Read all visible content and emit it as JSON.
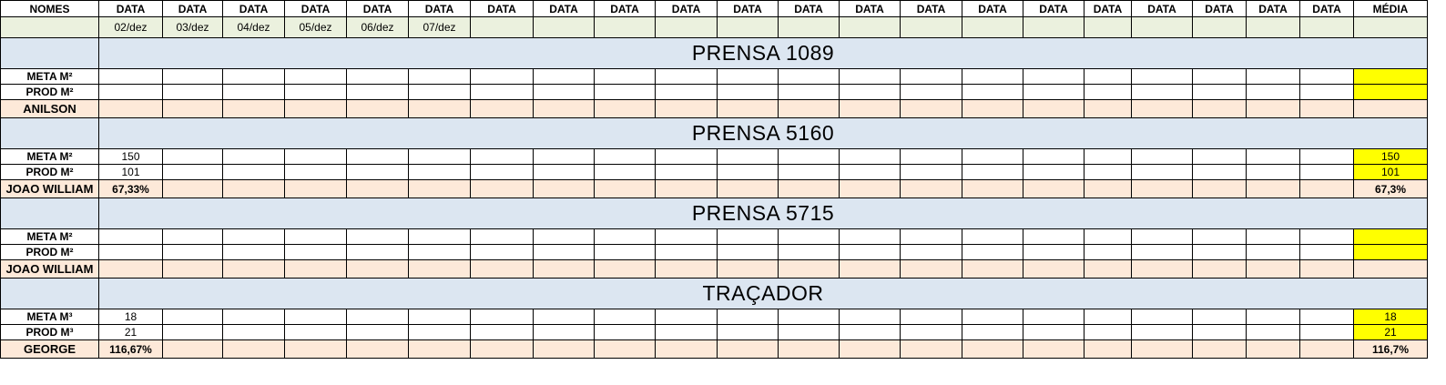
{
  "header": {
    "names_label": "NOMES",
    "date_label": "DATA",
    "average_label": "MÉDIA"
  },
  "dates": [
    "02/dez",
    "03/dez",
    "04/dez",
    "05/dez",
    "06/dez",
    "07/dez",
    "",
    "",
    "",
    "",
    "",
    "",
    "",
    "",
    "",
    "",
    "",
    "",
    "",
    "",
    ""
  ],
  "sections": [
    {
      "title": "PRENSA 1089",
      "meta_label": "META M²",
      "prod_label": "PROD M²",
      "operator": "ANILSON",
      "meta_day1": "",
      "prod_day1": "",
      "pct_day1": "",
      "meta_avg": "",
      "prod_avg": "",
      "pct_avg": ""
    },
    {
      "title": "PRENSA 5160",
      "meta_label": "META M²",
      "prod_label": "PROD M²",
      "operator": "JOAO WILLIAM",
      "meta_day1": "150",
      "prod_day1": "101",
      "pct_day1": "67,33%",
      "meta_avg": "150",
      "prod_avg": "101",
      "pct_avg": "67,3%"
    },
    {
      "title": "PRENSA 5715",
      "meta_label": "META M²",
      "prod_label": "PROD M²",
      "operator": "JOAO WILLIAM",
      "meta_day1": "",
      "prod_day1": "",
      "pct_day1": "",
      "meta_avg": "",
      "prod_avg": "",
      "pct_avg": ""
    },
    {
      "title": "TRAÇADOR",
      "meta_label": "META M³",
      "prod_label": "PROD M³",
      "operator": "GEORGE",
      "meta_day1": "18",
      "prod_day1": "21",
      "pct_day1": "116,67%",
      "meta_avg": "18",
      "prod_avg": "21",
      "pct_avg": "116,7%"
    }
  ],
  "colors": {
    "date_row_bg": "#ebf1de",
    "section_title_bg": "#dce6f1",
    "operator_row_bg": "#fde9d9",
    "average_highlight": "#ffff00"
  }
}
